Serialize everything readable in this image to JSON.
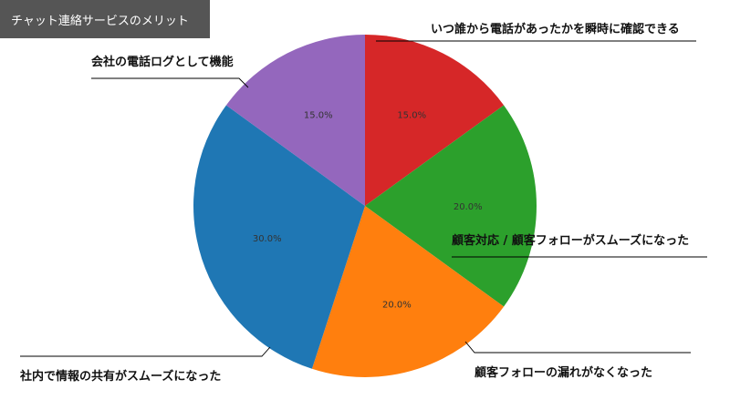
{
  "chart_data": {
    "type": "pie",
    "title": "チャット連絡サービスのメリット",
    "start_angle_deg": 90,
    "direction": "clockwise",
    "slices": [
      {
        "label": "いつ誰から電話があったかを瞬時に確認できる",
        "value": 15.0,
        "pct_label": "15.0%",
        "color": "#d62728"
      },
      {
        "label": "顧客対応 / 顧客フォローがスムーズになった",
        "value": 20.0,
        "pct_label": "20.0%",
        "color": "#2ca02c"
      },
      {
        "label": "顧客フォローの漏れがなくなった",
        "value": 20.0,
        "pct_label": "20.0%",
        "color": "#ff7f0e"
      },
      {
        "label": "社内で情報の共有がスムーズになった",
        "value": 30.0,
        "pct_label": "30.0%",
        "color": "#1f77b4"
      },
      {
        "label": "会社の電話ログとして機能",
        "value": 15.0,
        "pct_label": "15.0%",
        "color": "#9467bd"
      }
    ]
  }
}
